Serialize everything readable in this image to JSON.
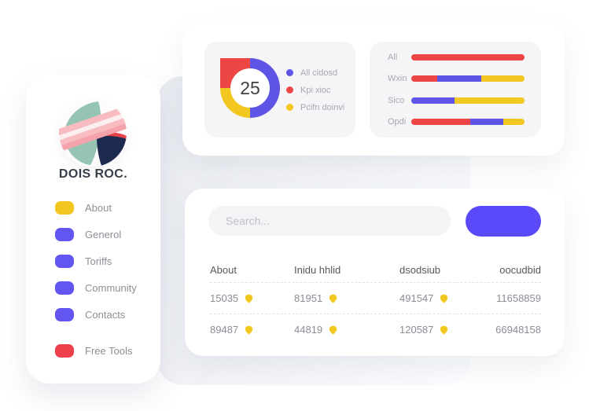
{
  "colors": {
    "red": "#ee4545",
    "yellow": "#f2c71f",
    "blue": "#5e54e6",
    "primary": "#5a49f8"
  },
  "brand": {
    "name": "DOIS ROC.",
    "logo": "leaf-stripe-circle-logo"
  },
  "sidebar": {
    "items": [
      {
        "label": "About",
        "color": "#f2c71f"
      },
      {
        "label": "Generol",
        "color": "#6355f0"
      },
      {
        "label": "Toriffs",
        "color": "#6355f0"
      },
      {
        "label": "Community",
        "color": "#6355f0"
      },
      {
        "label": "Contacts",
        "color": "#6355f0"
      },
      {
        "label": "Free Tools",
        "color": "#ee3f4d"
      }
    ]
  },
  "stats": {
    "donut_value": "25",
    "legend": [
      {
        "label": "All cidosd",
        "color": "#5e54e6"
      },
      {
        "label": "Kpi xioc",
        "color": "#ee4545"
      },
      {
        "label": "Pcifn doinvi",
        "color": "#f2c71f"
      }
    ]
  },
  "table_card": {
    "search_placeholder": "Search...",
    "button_label": "",
    "row_badge_icon": "shield-badge",
    "columns": [
      "About",
      "Inidu hhlid",
      "dsodsiub",
      "oocudbid"
    ],
    "rows": [
      {
        "c1": "15035",
        "c2": "81951",
        "c3": "491547",
        "c4": "11658859"
      },
      {
        "c1": "89487",
        "c2": "44819",
        "c3": "120587",
        "c4": "66948158"
      }
    ]
  },
  "chart_data": [
    {
      "type": "pie",
      "donut": true,
      "center_label": "25",
      "legend_position": "right",
      "segments": [
        {
          "name": "All cidosd",
          "color": "#5e54e6",
          "value": 50
        },
        {
          "name": "Pcifn doinvi",
          "color": "#f2c71f",
          "value": 25
        },
        {
          "name": "Kpi xioc",
          "color": "#ee4545",
          "value": 25
        }
      ]
    },
    {
      "type": "bar",
      "orientation": "horizontal",
      "stacked": true,
      "unit": "percent",
      "categories": [
        "All",
        "Wxin",
        "Sico",
        "Opdi"
      ],
      "rows": [
        {
          "category": "All",
          "segments": [
            {
              "color": "#ee4545",
              "value": 100
            }
          ]
        },
        {
          "category": "Wxin",
          "segments": [
            {
              "color": "#ee4545",
              "value": 23
            },
            {
              "color": "#5e54e6",
              "value": 39
            },
            {
              "color": "#f2c71f",
              "value": 38
            }
          ]
        },
        {
          "category": "Sico",
          "segments": [
            {
              "color": "#5e54e6",
              "value": 38
            },
            {
              "color": "#f2c71f",
              "value": 62
            }
          ]
        },
        {
          "category": "Opdi",
          "segments": [
            {
              "color": "#ee4545",
              "value": 52
            },
            {
              "color": "#5e54e6",
              "value": 29
            },
            {
              "color": "#f2c71f",
              "value": 19
            }
          ]
        }
      ]
    }
  ]
}
